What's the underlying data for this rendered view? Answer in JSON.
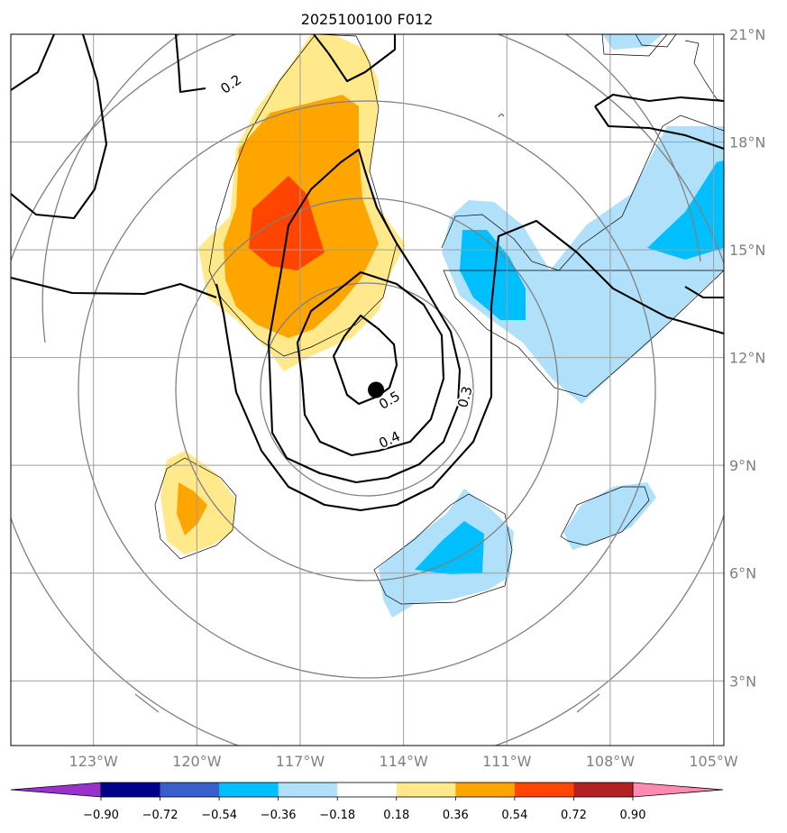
{
  "title": "2025100100 F012",
  "map": {
    "lon_range": [
      -125.4,
      -104.7
    ],
    "lat_range": [
      1.2,
      21.0
    ],
    "lat_ticks": [
      {
        "value": 3,
        "label": "3°N"
      },
      {
        "value": 6,
        "label": "6°N"
      },
      {
        "value": 9,
        "label": "9°N"
      },
      {
        "value": 12,
        "label": "12°N"
      },
      {
        "value": 15,
        "label": "15°N"
      },
      {
        "value": 18,
        "label": "18°N"
      },
      {
        "value": 21,
        "label": "21°N"
      }
    ],
    "lon_ticks": [
      {
        "value": -123,
        "label": "123°W"
      },
      {
        "value": -120,
        "label": "120°W"
      },
      {
        "value": -117,
        "label": "117°W"
      },
      {
        "value": -114,
        "label": "114°W"
      },
      {
        "value": -111,
        "label": "111°W"
      },
      {
        "value": -108,
        "label": "108°W"
      },
      {
        "value": -105,
        "label": "105°W"
      }
    ],
    "storm_center": {
      "lon": -114.8,
      "lat": 11.1
    },
    "contour_labels": [
      {
        "text": "0.2",
        "lon": -119.0,
        "lat": 19.6,
        "rotate": -35
      },
      {
        "text": "0.5",
        "lon": -114.4,
        "lat": 10.8,
        "rotate": -30
      },
      {
        "text": "0.3",
        "lon": -112.2,
        "lat": 10.9,
        "rotate": -75
      },
      {
        "text": "0.4",
        "lon": -114.4,
        "lat": 9.7,
        "rotate": -25
      }
    ]
  },
  "colorbar": {
    "boundaries": [
      "−0.90",
      "−0.72",
      "−0.54",
      "−0.36",
      "−0.18",
      "0.18",
      "0.36",
      "0.54",
      "0.72",
      "0.90"
    ],
    "colors": [
      "#9932cc",
      "#00008b",
      "#3a5fcd",
      "#00bfff",
      "#b0e0fa",
      "#ffffff",
      "#ffe98a",
      "#ffa500",
      "#ff4500",
      "#b22222",
      "#ff89b0"
    ]
  }
}
